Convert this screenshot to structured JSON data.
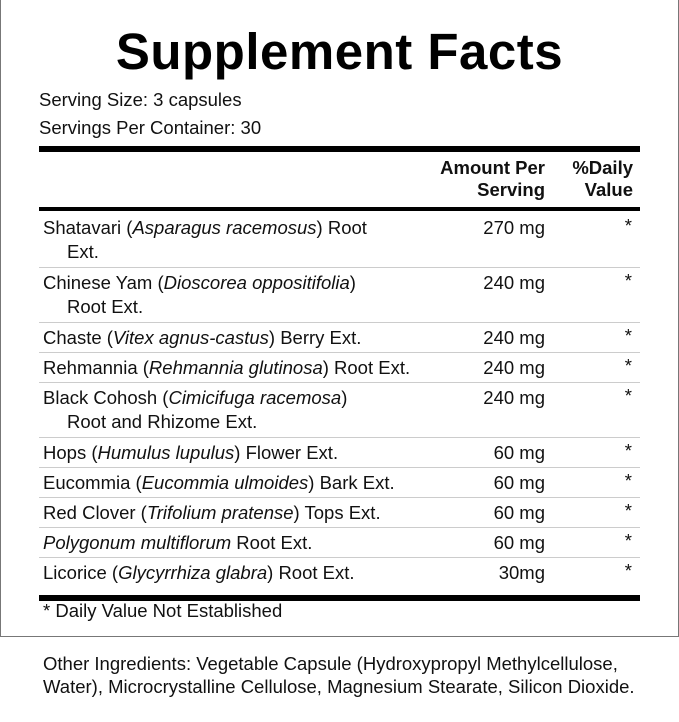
{
  "title": "Supplement Facts",
  "serving_size": "Serving Size: 3 capsules",
  "servings_per_container": "Servings Per Container: 30",
  "headers": {
    "amount_line1": "Amount Per",
    "amount_line2": "Serving",
    "dv_line1": "%Daily",
    "dv_line2": "Value"
  },
  "rows": [
    {
      "pre": "Shatavari (",
      "latin": "Asparagus racemosus",
      "post": ") Root",
      "line2": "Ext.",
      "amount": "270 mg",
      "dv": "*"
    },
    {
      "pre": "Chinese Yam (",
      "latin": "Dioscorea oppositifolia",
      "post": ")",
      "line2": "Root Ext.",
      "amount": "240 mg",
      "dv": "*"
    },
    {
      "pre": "Chaste (",
      "latin": "Vitex agnus-castus",
      "post": ") Berry Ext.",
      "line2": "",
      "amount": "240 mg",
      "dv": "*"
    },
    {
      "pre": "Rehmannia (",
      "latin": "Rehmannia glutinosa",
      "post": ") Root Ext.",
      "line2": "",
      "amount": "240 mg",
      "dv": "*"
    },
    {
      "pre": "Black Cohosh (",
      "latin": "Cimicifuga racemosa",
      "post": ")",
      "line2": "Root and Rhizome Ext.",
      "amount": "240 mg",
      "dv": "*"
    },
    {
      "pre": "Hops (",
      "latin": "Humulus lupulus",
      "post": ") Flower Ext.",
      "line2": "",
      "amount": "60 mg",
      "dv": "*"
    },
    {
      "pre": "Eucommia (",
      "latin": "Eucommia ulmoides",
      "post": ") Bark Ext.",
      "line2": "",
      "amount": "60 mg",
      "dv": "*"
    },
    {
      "pre": "Red Clover (",
      "latin": "Trifolium pratense",
      "post": ") Tops Ext.",
      "line2": "",
      "amount": "60 mg",
      "dv": "*"
    },
    {
      "pre": "",
      "latin": "Polygonum multiflorum",
      "post": " Root Ext.",
      "line2": "",
      "amount": "60 mg",
      "dv": "*"
    },
    {
      "pre": "Licorice (",
      "latin": "Glycyrrhiza glabra",
      "post": ") Root Ext.",
      "line2": "",
      "amount": "30mg",
      "dv": "*"
    }
  ],
  "footnote": "* Daily Value Not Established",
  "other_ingredients": "Other Ingredients: Vegetable Capsule (Hydroxypropyl Methylcellulose, Water), Microcrystalline Cellulose, Magnesium Stearate, Silicon Dioxide."
}
